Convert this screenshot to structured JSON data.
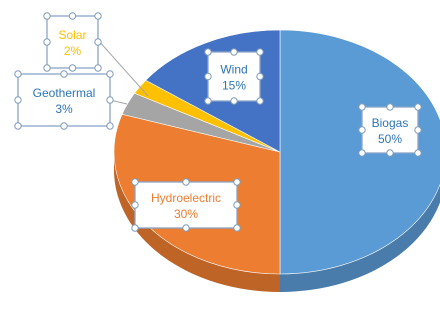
{
  "chart_data": {
    "type": "pie",
    "style": "3d",
    "title": "",
    "slices": [
      {
        "label": "Biogas",
        "value": 50,
        "percent_label": "50%",
        "color": "#5b9bd5",
        "label_color": "#2e75b6"
      },
      {
        "label": "Hydroelectric",
        "value": 30,
        "percent_label": "30%",
        "color": "#ed7d31",
        "label_color": "#ed7d31"
      },
      {
        "label": "Geothermal",
        "value": 3,
        "percent_label": "3%",
        "color": "#a5a5a5",
        "label_color": "#2e75b6"
      },
      {
        "label": "Solar",
        "value": 2,
        "percent_label": "2%",
        "color": "#ffc000",
        "label_color": "#ffc000"
      },
      {
        "label": "Wind",
        "value": 15,
        "percent_label": "15%",
        "color": "#4472c4",
        "label_color": "#2e75b6"
      }
    ],
    "legend": "none",
    "data_labels": "callouts"
  }
}
